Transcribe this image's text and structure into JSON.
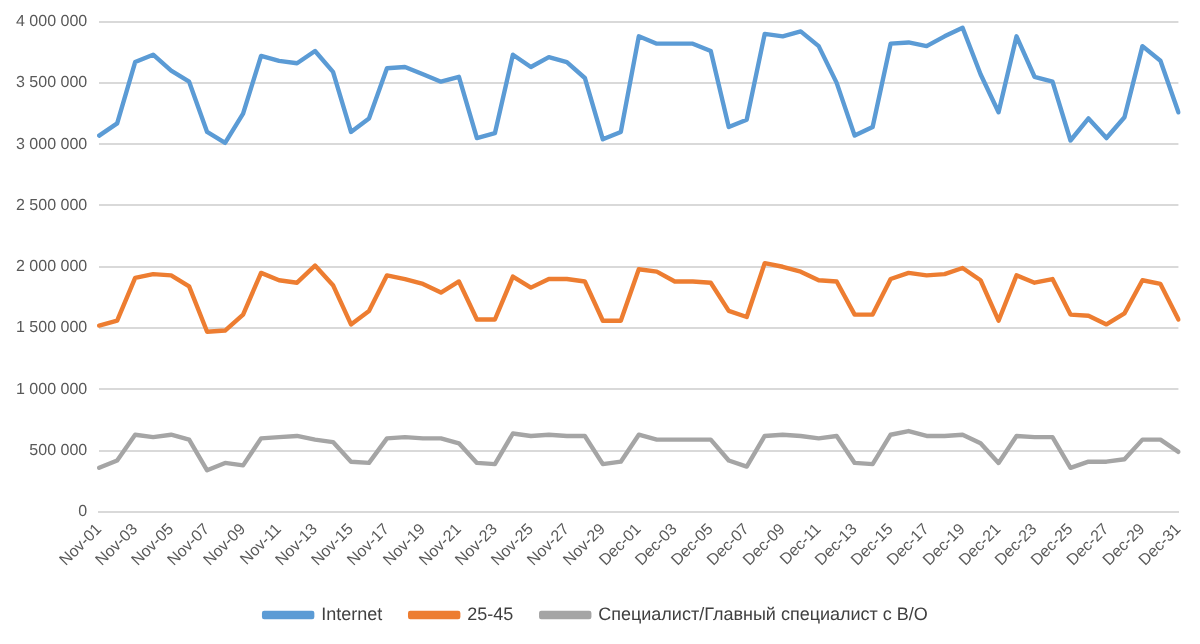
{
  "chart_data": {
    "type": "line",
    "categories": [
      "Nov-01",
      null,
      "Nov-03",
      null,
      "Nov-05",
      null,
      "Nov-07",
      null,
      "Nov-09",
      null,
      "Nov-11",
      null,
      "Nov-13",
      null,
      "Nov-15",
      null,
      "Nov-17",
      null,
      "Nov-19",
      null,
      "Nov-21",
      null,
      "Nov-23",
      null,
      "Nov-25",
      null,
      "Nov-27",
      null,
      "Nov-29",
      null,
      "Dec-01",
      null,
      "Dec-03",
      null,
      "Dec-05",
      null,
      "Dec-07",
      null,
      "Dec-09",
      null,
      "Dec-11",
      null,
      "Dec-13",
      null,
      "Dec-15",
      null,
      "Dec-17",
      null,
      "Dec-19",
      null,
      "Dec-21",
      null,
      "Dec-23",
      null,
      "Dec-25",
      null,
      "Dec-27",
      null,
      "Dec-29",
      null,
      "Dec-31"
    ],
    "series": [
      {
        "name": "Internet",
        "color": "#5b9bd5",
        "values": [
          3070000,
          3170000,
          3670000,
          3730000,
          3600000,
          3510000,
          3100000,
          3010000,
          3250000,
          3720000,
          3680000,
          3660000,
          3760000,
          3590000,
          3100000,
          3210000,
          3620000,
          3630000,
          3570000,
          3510000,
          3550000,
          3050000,
          3090000,
          3730000,
          3630000,
          3710000,
          3670000,
          3540000,
          3040000,
          3100000,
          3880000,
          3820000,
          3820000,
          3820000,
          3760000,
          3140000,
          3200000,
          3900000,
          3880000,
          3920000,
          3800000,
          3500000,
          3070000,
          3140000,
          3820000,
          3830000,
          3800000,
          3880000,
          3950000,
          3570000,
          3260000,
          3880000,
          3550000,
          3510000,
          3030000,
          3210000,
          3050000,
          3220000,
          3800000,
          3680000,
          3260000
        ]
      },
      {
        "name": "25-45",
        "color": "#ed7d31",
        "values": [
          1520000,
          1560000,
          1910000,
          1940000,
          1930000,
          1840000,
          1470000,
          1480000,
          1610000,
          1950000,
          1890000,
          1870000,
          2010000,
          1850000,
          1530000,
          1640000,
          1930000,
          1900000,
          1860000,
          1790000,
          1880000,
          1570000,
          1570000,
          1920000,
          1830000,
          1900000,
          1900000,
          1880000,
          1560000,
          1560000,
          1980000,
          1960000,
          1880000,
          1880000,
          1870000,
          1640000,
          1590000,
          2030000,
          2000000,
          1960000,
          1890000,
          1880000,
          1610000,
          1610000,
          1900000,
          1950000,
          1930000,
          1940000,
          1990000,
          1890000,
          1560000,
          1930000,
          1870000,
          1900000,
          1610000,
          1600000,
          1530000,
          1620000,
          1890000,
          1860000,
          1570000
        ]
      },
      {
        "name": "Специалист/Главный специалист с В/О",
        "color": "#a5a5a5",
        "values": [
          360000,
          420000,
          630000,
          610000,
          630000,
          590000,
          340000,
          400000,
          380000,
          600000,
          610000,
          620000,
          590000,
          570000,
          410000,
          400000,
          600000,
          610000,
          600000,
          600000,
          560000,
          400000,
          390000,
          640000,
          620000,
          630000,
          620000,
          620000,
          390000,
          410000,
          630000,
          590000,
          590000,
          590000,
          590000,
          420000,
          370000,
          620000,
          630000,
          620000,
          600000,
          620000,
          400000,
          390000,
          630000,
          660000,
          620000,
          620000,
          630000,
          560000,
          400000,
          620000,
          610000,
          610000,
          360000,
          410000,
          410000,
          430000,
          590000,
          590000,
          490000
        ]
      }
    ],
    "ylim": [
      0,
      4000000
    ],
    "yticks": [
      {
        "value": 0,
        "label": "0"
      },
      {
        "value": 500000,
        "label": "500 000"
      },
      {
        "value": 1000000,
        "label": "1 000 000"
      },
      {
        "value": 1500000,
        "label": "1 500 000"
      },
      {
        "value": 2000000,
        "label": "2 000 000"
      },
      {
        "value": 2500000,
        "label": "2 500 000"
      },
      {
        "value": 3000000,
        "label": "3 000 000"
      },
      {
        "value": 3500000,
        "label": "3 500 000"
      },
      {
        "value": 4000000,
        "label": "4 000 000"
      }
    ],
    "grid": "y",
    "legend": "bottom",
    "marker": "none",
    "line_style": "solid"
  }
}
